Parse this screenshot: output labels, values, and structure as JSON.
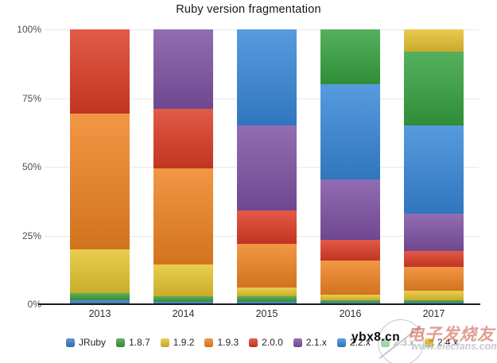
{
  "title": "Ruby version fragmentation",
  "chart_data": {
    "type": "bar",
    "stacked": true,
    "stacking": "percent",
    "title": "Ruby version fragmentation",
    "categories": [
      "2013",
      "2014",
      "2015",
      "2016",
      "2017"
    ],
    "series": [
      {
        "name": "JRuby",
        "color": "#3b7ec0",
        "values": [
          1.5,
          1,
          1,
          0.5,
          0.5
        ]
      },
      {
        "name": "1.8.7",
        "color": "#3e9e3e",
        "values": [
          2.5,
          2,
          2,
          1,
          1
        ]
      },
      {
        "name": "1.9.2",
        "color": "#e5c42e",
        "values": [
          16,
          11.5,
          3,
          2,
          3.5
        ]
      },
      {
        "name": "1.9.3",
        "color": "#ef8321",
        "values": [
          49.5,
          35,
          16,
          12.5,
          8.5
        ]
      },
      {
        "name": "2.0.0",
        "color": "#dc3b25",
        "values": [
          30.5,
          21.5,
          12,
          7.5,
          6
        ]
      },
      {
        "name": "2.1.x",
        "color": "#7e51a4",
        "values": [
          0,
          29,
          31,
          22,
          13.5
        ]
      },
      {
        "name": "2.2.x",
        "color": "#3787d8",
        "values": [
          0,
          0,
          35,
          34.5,
          32
        ]
      },
      {
        "name": "2.3.x",
        "color": "#35a13f",
        "values": [
          0,
          0,
          0,
          20,
          27
        ]
      },
      {
        "name": "2.4.x",
        "color": "#e6c12f",
        "values": [
          0,
          0,
          0,
          0,
          8
        ]
      }
    ],
    "yticks": [
      {
        "label": "0%",
        "value": 0
      },
      {
        "label": "25%",
        "value": 25
      },
      {
        "label": "50%",
        "value": 50
      },
      {
        "label": "75%",
        "value": 75
      },
      {
        "label": "100%",
        "value": 100
      }
    ],
    "ylim": [
      0,
      100
    ],
    "xlabel": "",
    "ylabel": "",
    "grid": true,
    "legend_position": "bottom"
  },
  "watermarks": {
    "overlay_text": "ybx8.cn",
    "site_name": "电子发烧友",
    "site_url": "www.elecfans.com"
  }
}
